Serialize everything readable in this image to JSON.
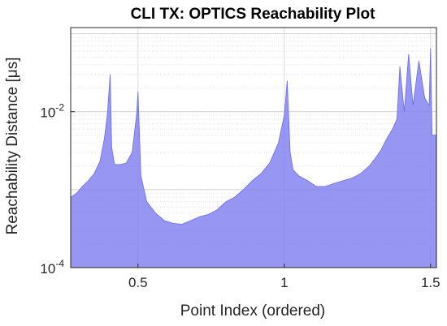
{
  "chart_data": {
    "type": "area",
    "title": "CLI TX: OPTICS Reachability Plot",
    "xlabel": "Point Index (ordered)",
    "ylabel": "Reachability Distance [μs]",
    "x_scale_factor": "x10^4",
    "y_scale": "log",
    "grid": true,
    "xlim": [
      0.27,
      1.52
    ],
    "ylim": [
      0.0001,
      0.12
    ],
    "x_ticks": [
      {
        "value": 0.5,
        "label": "0.5"
      },
      {
        "value": 1.0,
        "label": "1"
      },
      {
        "value": 1.5,
        "label": "1.5"
      }
    ],
    "y_ticks": [
      {
        "value": 0.0001,
        "base": "10",
        "exp": "-4"
      },
      {
        "value": 0.01,
        "base": "10",
        "exp": "-2"
      }
    ],
    "series": [
      {
        "color": "#8080f0",
        "x": [
          0.27,
          0.29,
          0.31,
          0.33,
          0.35,
          0.37,
          0.385,
          0.395,
          0.405,
          0.41,
          0.42,
          0.44,
          0.46,
          0.48,
          0.495,
          0.5,
          0.51,
          0.53,
          0.56,
          0.59,
          0.62,
          0.65,
          0.68,
          0.71,
          0.74,
          0.77,
          0.8,
          0.83,
          0.86,
          0.89,
          0.92,
          0.95,
          0.98,
          1.0,
          1.01,
          1.02,
          1.03,
          1.05,
          1.08,
          1.11,
          1.14,
          1.17,
          1.2,
          1.23,
          1.26,
          1.29,
          1.31,
          1.33,
          1.35,
          1.37,
          1.385,
          1.395,
          1.41,
          1.425,
          1.44,
          1.46,
          1.48,
          1.495,
          1.5,
          1.505,
          1.52
        ],
        "y": [
          0.0008,
          0.0009,
          0.0011,
          0.0013,
          0.0016,
          0.0023,
          0.0045,
          0.009,
          0.03,
          0.0035,
          0.0021,
          0.0021,
          0.0022,
          0.003,
          0.009,
          0.018,
          0.0015,
          0.0007,
          0.0005,
          0.0004,
          0.00037,
          0.00036,
          0.0004,
          0.00045,
          0.00048,
          0.00055,
          0.0007,
          0.0008,
          0.001,
          0.0013,
          0.0016,
          0.0022,
          0.004,
          0.009,
          0.025,
          0.003,
          0.0018,
          0.0015,
          0.0013,
          0.0011,
          0.0011,
          0.0012,
          0.0013,
          0.0014,
          0.0016,
          0.002,
          0.0025,
          0.0032,
          0.0045,
          0.006,
          0.008,
          0.038,
          0.01,
          0.055,
          0.012,
          0.045,
          0.015,
          0.012,
          0.065,
          0.005,
          0.005
        ]
      }
    ]
  }
}
